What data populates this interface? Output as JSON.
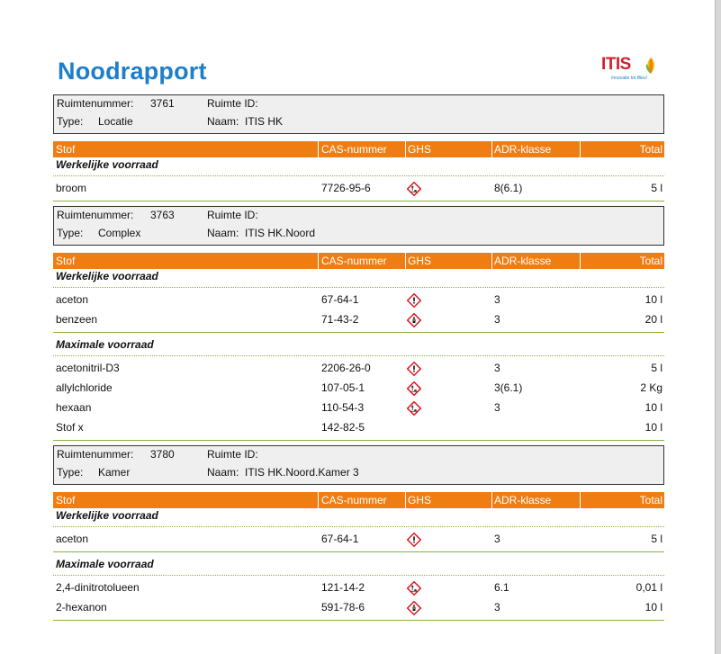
{
  "title": "Noodrapport",
  "logo": {
    "text": "ITIS",
    "tagline": "Innovatie tot Bleu!"
  },
  "column_headers": {
    "stof": "Stof",
    "cas": "CAS-nummer",
    "ghs": "GHS",
    "adr": "ADR-klasse",
    "total": "Total"
  },
  "labels": {
    "ruimtenummer": "Ruimtenummer:",
    "ruimte_id": "Ruimte ID:",
    "type": "Type:",
    "naam": "Naam:"
  },
  "sections": {
    "werkelijk": "Werkelijke voorraad",
    "maximaal": "Maximale voorraad"
  },
  "rooms": [
    {
      "number": "3761",
      "type": "Locatie",
      "naam": "ITIS HK",
      "werkelijk": [
        {
          "stof": "broom",
          "cas": "7726-95-6",
          "ghs": [
            "corrosion-icon",
            "skull-icon",
            "environment-icon"
          ],
          "adr": "8(6.1)",
          "total": "5 l"
        }
      ]
    },
    {
      "number": "3763",
      "type": "Complex",
      "naam": "ITIS HK.Noord",
      "werkelijk": [
        {
          "stof": "aceton",
          "cas": "67-64-1",
          "ghs": [
            "flame-icon",
            "exclamation-icon"
          ],
          "adr": "3",
          "total": "10 l"
        },
        {
          "stof": "benzeen",
          "cas": "71-43-2",
          "ghs": [
            "flame-icon",
            "exclamation-icon",
            "health-hazard-icon"
          ],
          "adr": "3",
          "total": "20 l"
        }
      ],
      "maximaal": [
        {
          "stof": "acetonitril-D3",
          "cas": "2206-26-0",
          "ghs": [
            "flame-icon",
            "exclamation-icon"
          ],
          "adr": "3",
          "total": "5 l"
        },
        {
          "stof": "allylchloride",
          "cas": "107-05-1",
          "ghs": [
            "flame-icon",
            "skull-icon",
            "health-hazard-icon",
            "environment-icon"
          ],
          "adr": "3(6.1)",
          "total": "2 Kg"
        },
        {
          "stof": "hexaan",
          "cas": "110-54-3",
          "ghs": [
            "flame-icon",
            "exclamation-icon",
            "health-hazard-icon",
            "environment-icon"
          ],
          "adr": "3",
          "total": "10 l"
        },
        {
          "stof": "Stof x",
          "cas": "142-82-5",
          "ghs": [],
          "adr": "",
          "total": "10 l"
        }
      ]
    },
    {
      "number": "3780",
      "type": "Kamer",
      "naam": "ITIS HK.Noord.Kamer 3",
      "werkelijk": [
        {
          "stof": "aceton",
          "cas": "67-64-1",
          "ghs": [
            "flame-icon",
            "exclamation-icon"
          ],
          "adr": "3",
          "total": "5 l"
        }
      ],
      "maximaal": [
        {
          "stof": "2,4-dinitrotolueen",
          "cas": "121-14-2",
          "ghs": [
            "skull-icon",
            "health-hazard-icon",
            "environment-icon"
          ],
          "adr": "6.1",
          "total": "0,01 l"
        },
        {
          "stof": "2-hexanon",
          "cas": "591-78-6",
          "ghs": [
            "flame-icon",
            "exclamation-icon",
            "health-hazard-icon"
          ],
          "adr": "3",
          "total": "10 l"
        }
      ]
    }
  ]
}
